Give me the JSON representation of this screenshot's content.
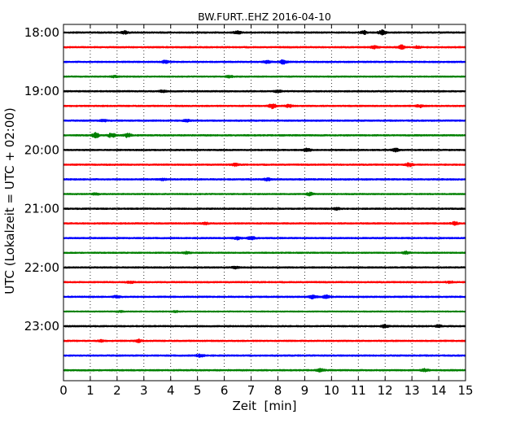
{
  "chart_data": {
    "type": "line",
    "title": "BW.FURT..EHZ 2016-04-10",
    "xlabel": "Zeit  [min]",
    "ylabel": "UTC (Lokalzeit = UTC + 02:00)",
    "xlim": [
      0,
      15
    ],
    "x_ticks": [
      0,
      1,
      2,
      3,
      4,
      5,
      6,
      7,
      8,
      9,
      10,
      11,
      12,
      13,
      14,
      15
    ],
    "x_tick_labels": [
      "0",
      "1",
      "2",
      "3",
      "4",
      "5",
      "6",
      "7",
      "8",
      "9",
      "10",
      "11",
      "12",
      "13",
      "14",
      "15"
    ],
    "grid": {
      "x": true,
      "style": "dotted"
    },
    "y_tick_labels": [
      "18:00",
      "19:00",
      "20:00",
      "21:00",
      "22:00",
      "23:00"
    ],
    "trace_color_cycle": [
      "#000000",
      "#ff0000",
      "#0000ff",
      "#008000"
    ],
    "series": [
      {
        "start": "18:00",
        "color": "#000000",
        "base_amplitude": 0.8,
        "bursts": [
          [
            2.3,
            1.6
          ],
          [
            6.5,
            1.4
          ],
          [
            11.2,
            2.0
          ],
          [
            11.9,
            2.6
          ]
        ]
      },
      {
        "start": "18:15",
        "color": "#ff0000",
        "base_amplitude": 0.8,
        "bursts": [
          [
            11.6,
            1.4
          ],
          [
            12.6,
            2.4
          ],
          [
            13.2,
            1.3
          ]
        ]
      },
      {
        "start": "18:30",
        "color": "#0000ff",
        "base_amplitude": 0.8,
        "bursts": [
          [
            3.8,
            1.4
          ],
          [
            7.6,
            1.5
          ],
          [
            8.2,
            2.0
          ]
        ]
      },
      {
        "start": "18:45",
        "color": "#008000",
        "base_amplitude": 0.7,
        "bursts": [
          [
            1.9,
            1.0
          ],
          [
            6.2,
            1.1
          ]
        ]
      },
      {
        "start": "19:00",
        "color": "#000000",
        "base_amplitude": 0.8,
        "bursts": [
          [
            3.7,
            1.0
          ],
          [
            8.0,
            1.3
          ]
        ]
      },
      {
        "start": "19:15",
        "color": "#ff0000",
        "base_amplitude": 0.8,
        "bursts": [
          [
            7.8,
            2.6
          ],
          [
            8.4,
            1.6
          ],
          [
            13.3,
            1.3
          ]
        ]
      },
      {
        "start": "19:30",
        "color": "#0000ff",
        "base_amplitude": 0.8,
        "bursts": [
          [
            1.5,
            1.0
          ],
          [
            4.6,
            1.1
          ]
        ]
      },
      {
        "start": "19:45",
        "color": "#008000",
        "base_amplitude": 0.8,
        "bursts": [
          [
            1.2,
            2.8
          ],
          [
            1.8,
            2.6
          ],
          [
            2.4,
            2.2
          ]
        ]
      },
      {
        "start": "20:00",
        "color": "#000000",
        "base_amplitude": 0.8,
        "bursts": [
          [
            9.1,
            1.7
          ],
          [
            12.4,
            1.6
          ]
        ]
      },
      {
        "start": "20:15",
        "color": "#ff0000",
        "base_amplitude": 0.8,
        "bursts": [
          [
            6.4,
            1.4
          ],
          [
            12.9,
            2.0
          ]
        ]
      },
      {
        "start": "20:30",
        "color": "#0000ff",
        "base_amplitude": 0.8,
        "bursts": [
          [
            3.7,
            1.2
          ],
          [
            7.6,
            1.5
          ]
        ]
      },
      {
        "start": "20:45",
        "color": "#008000",
        "base_amplitude": 0.7,
        "bursts": [
          [
            1.2,
            1.0
          ],
          [
            9.2,
            1.6
          ]
        ]
      },
      {
        "start": "21:00",
        "color": "#000000",
        "base_amplitude": 0.8,
        "bursts": [
          [
            10.2,
            1.1
          ]
        ]
      },
      {
        "start": "21:15",
        "color": "#ff0000",
        "base_amplitude": 0.8,
        "bursts": [
          [
            5.3,
            1.0
          ],
          [
            14.6,
            1.7
          ]
        ]
      },
      {
        "start": "21:30",
        "color": "#0000ff",
        "base_amplitude": 0.8,
        "bursts": [
          [
            6.5,
            1.6
          ],
          [
            7.0,
            1.9
          ]
        ]
      },
      {
        "start": "21:45",
        "color": "#008000",
        "base_amplitude": 0.7,
        "bursts": [
          [
            4.6,
            1.1
          ],
          [
            12.8,
            1.5
          ]
        ]
      },
      {
        "start": "22:00",
        "color": "#000000",
        "base_amplitude": 0.8,
        "bursts": [
          [
            6.4,
            1.1
          ]
        ]
      },
      {
        "start": "22:15",
        "color": "#ff0000",
        "base_amplitude": 0.8,
        "bursts": [
          [
            2.5,
            1.0
          ],
          [
            14.4,
            1.3
          ]
        ]
      },
      {
        "start": "22:30",
        "color": "#0000ff",
        "base_amplitude": 0.8,
        "bursts": [
          [
            2.0,
            1.4
          ],
          [
            9.3,
            1.9
          ],
          [
            9.8,
            1.6
          ]
        ]
      },
      {
        "start": "22:45",
        "color": "#008000",
        "base_amplitude": 0.6,
        "bursts": [
          [
            2.1,
            0.8
          ],
          [
            4.2,
            0.8
          ]
        ]
      },
      {
        "start": "23:00",
        "color": "#000000",
        "base_amplitude": 0.8,
        "bursts": [
          [
            12.0,
            1.6
          ],
          [
            14.0,
            1.2
          ]
        ]
      },
      {
        "start": "23:15",
        "color": "#ff0000",
        "base_amplitude": 0.8,
        "bursts": [
          [
            1.4,
            1.0
          ],
          [
            2.8,
            1.4
          ]
        ]
      },
      {
        "start": "23:30",
        "color": "#0000ff",
        "base_amplitude": 0.8,
        "bursts": [
          [
            5.1,
            1.6
          ]
        ]
      },
      {
        "start": "23:45",
        "color": "#008000",
        "base_amplitude": 0.8,
        "bursts": [
          [
            9.6,
            1.5
          ],
          [
            13.5,
            1.6
          ]
        ]
      }
    ]
  }
}
